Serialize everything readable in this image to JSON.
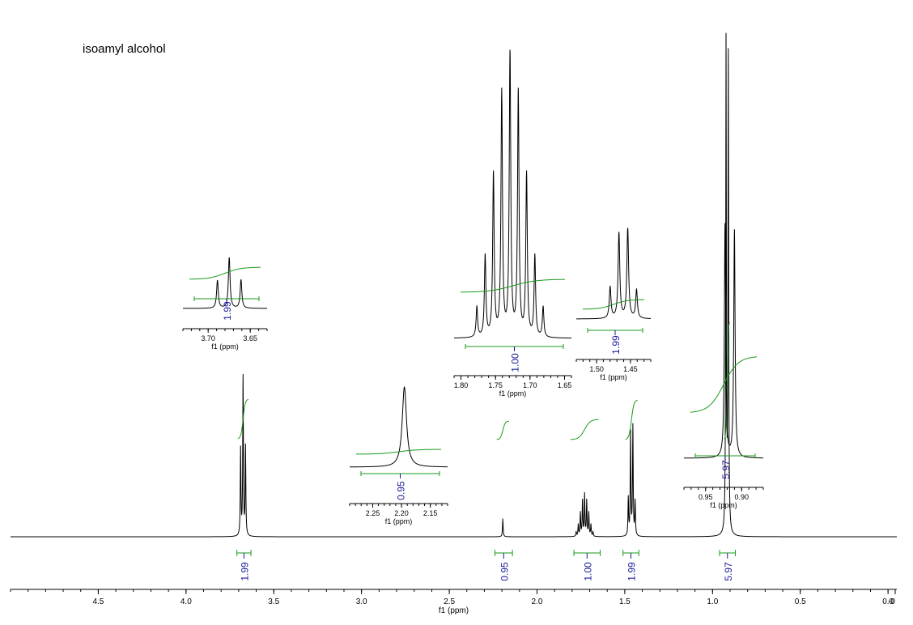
{
  "chart_data": {
    "type": "line",
    "title": "isoamyl alcohol",
    "xlabel": "f1 (ppm)",
    "xlim": [
      5.0,
      -0.05
    ],
    "x_reversed": true,
    "x_ticks": [
      {
        "value": 4.5,
        "label": "4.5"
      },
      {
        "value": 4.0,
        "label": "4.0"
      },
      {
        "value": 3.5,
        "label": "3.5"
      },
      {
        "value": 3.0,
        "label": "3.0"
      },
      {
        "value": 2.5,
        "label": "2.5"
      },
      {
        "value": 2.0,
        "label": "2.0"
      },
      {
        "value": 1.5,
        "label": "1.5"
      },
      {
        "value": 1.0,
        "label": "1.0"
      },
      {
        "value": 0.5,
        "label": "0.5"
      },
      {
        "value": 0.0,
        "label": "0.0"
      },
      {
        "value": -0.05,
        "label": "-0"
      }
    ],
    "peaks": [
      {
        "ppm": 3.689,
        "height": 0.177
      },
      {
        "ppm": 3.675,
        "height": 0.323
      },
      {
        "ppm": 3.661,
        "height": 0.181
      },
      {
        "ppm": 2.195,
        "height": 0.036
      },
      {
        "ppm": 1.777,
        "height": 0.009
      },
      {
        "ppm": 1.765,
        "height": 0.024
      },
      {
        "ppm": 1.753,
        "height": 0.048
      },
      {
        "ppm": 1.741,
        "height": 0.072
      },
      {
        "ppm": 1.729,
        "height": 0.085
      },
      {
        "ppm": 1.717,
        "height": 0.072
      },
      {
        "ppm": 1.705,
        "height": 0.048
      },
      {
        "ppm": 1.693,
        "height": 0.024
      },
      {
        "ppm": 1.681,
        "height": 0.009
      },
      {
        "ppm": 1.48,
        "height": 0.077
      },
      {
        "ppm": 1.467,
        "height": 0.21
      },
      {
        "ppm": 1.454,
        "height": 0.223
      },
      {
        "ppm": 1.441,
        "height": 0.07
      },
      {
        "ppm": 0.923,
        "height": 1.0
      },
      {
        "ppm": 0.91,
        "height": 0.968
      }
    ],
    "integrals": [
      {
        "from": 3.71,
        "to": 3.63,
        "value": "1.99"
      },
      {
        "from": 2.24,
        "to": 2.14,
        "value": "0.95"
      },
      {
        "from": 1.79,
        "to": 1.64,
        "value": "1.00"
      },
      {
        "from": 1.51,
        "to": 1.42,
        "value": "1.99"
      },
      {
        "from": 0.96,
        "to": 0.87,
        "value": "5.97"
      }
    ],
    "insets": [
      {
        "name": "inset-3.67",
        "xlim": [
          3.73,
          3.63
        ],
        "xlabel": "f1 (ppm)",
        "ticks": [
          {
            "value": 3.7,
            "label": "3.70"
          },
          {
            "value": 3.65,
            "label": "3.65"
          }
        ],
        "integral_value": "1.99"
      },
      {
        "name": "inset-2.20",
        "xlim": [
          2.29,
          2.12
        ],
        "xlabel": "f1 (ppm)",
        "ticks": [
          {
            "value": 2.25,
            "label": "2.25"
          },
          {
            "value": 2.2,
            "label": "2.20"
          },
          {
            "value": 2.15,
            "label": "2.15"
          }
        ],
        "integral_value": "0.95"
      },
      {
        "name": "inset-1.72",
        "xlim": [
          1.81,
          1.64
        ],
        "xlabel": "f1 (ppm)",
        "ticks": [
          {
            "value": 1.8,
            "label": "1.80"
          },
          {
            "value": 1.75,
            "label": "1.75"
          },
          {
            "value": 1.7,
            "label": "1.70"
          },
          {
            "value": 1.65,
            "label": "1.65"
          }
        ],
        "integral_value": "1.00"
      },
      {
        "name": "inset-1.46",
        "xlim": [
          1.53,
          1.42
        ],
        "xlabel": "f1 (ppm)",
        "ticks": [
          {
            "value": 1.5,
            "label": "1.50"
          },
          {
            "value": 1.45,
            "label": "1.45"
          }
        ],
        "integral_value": "1.99"
      },
      {
        "name": "inset-0.92",
        "xlim": [
          0.98,
          0.87
        ],
        "xlabel": "f1 (ppm)",
        "ticks": [
          {
            "value": 0.95,
            "label": "0.95"
          },
          {
            "value": 0.9,
            "label": "0.90"
          }
        ],
        "integral_value": "5.97"
      }
    ],
    "colors": {
      "spectrum": "#000000",
      "integral_curve": "#1a9a1a",
      "integral_label": "#1a1a9a"
    }
  }
}
